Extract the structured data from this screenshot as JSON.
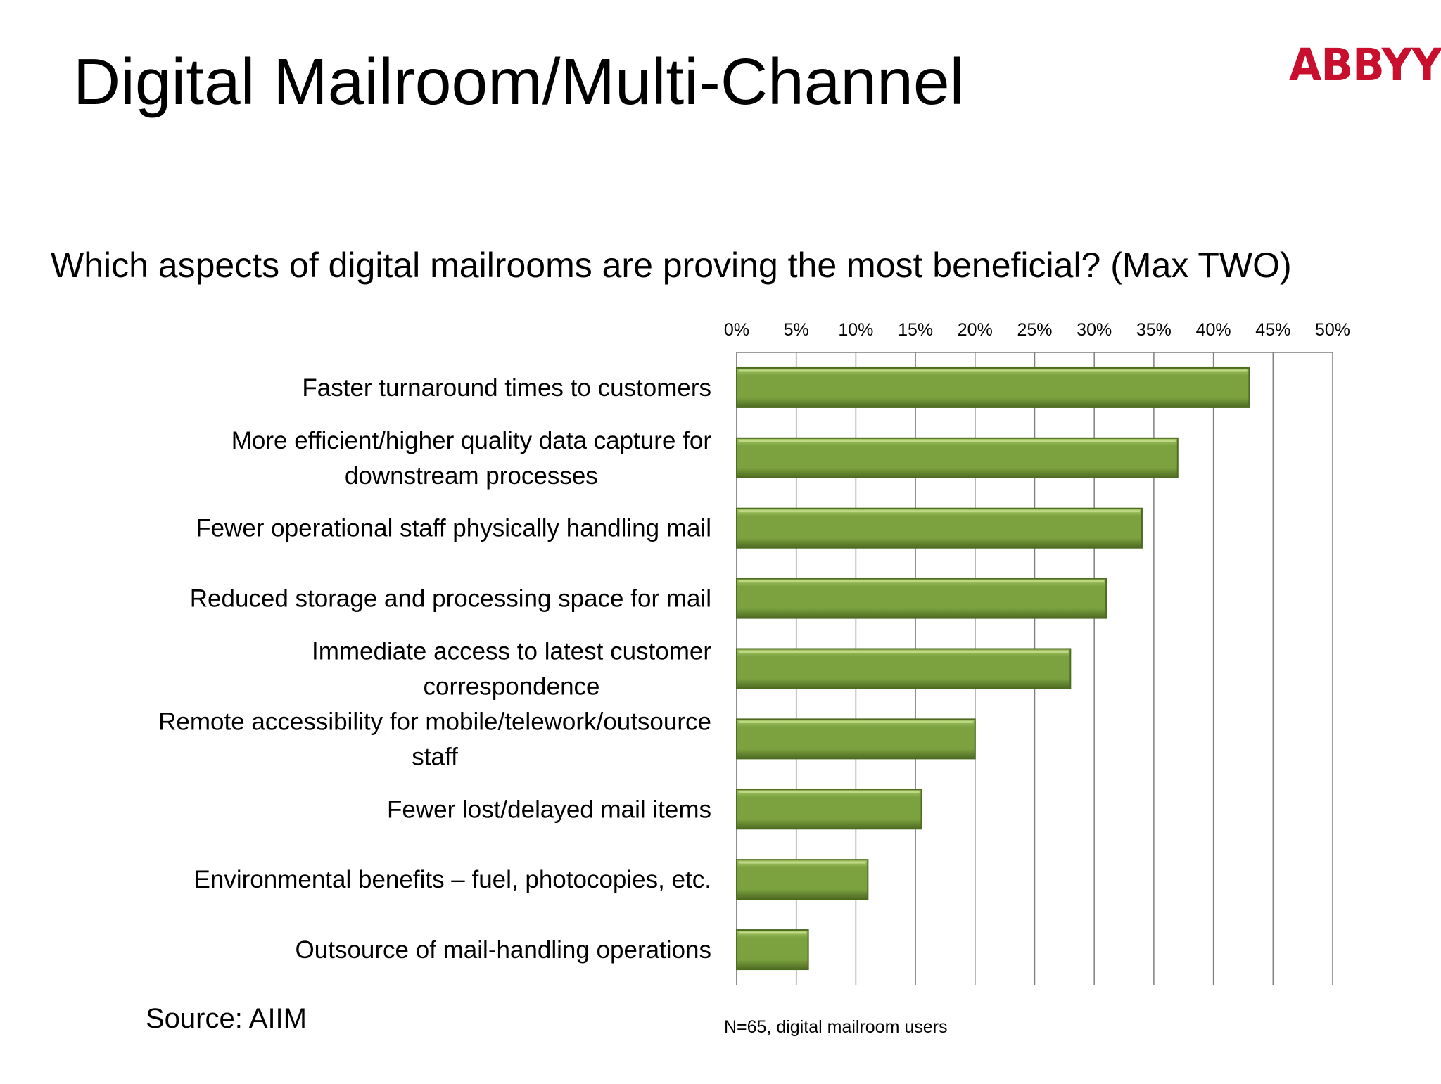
{
  "title": "Digital Mailroom/Multi-Channel",
  "logo_text": "ABBYY",
  "logo_mark": "®",
  "question": "Which aspects of digital mailrooms are proving the most beneficial? (Max TWO)",
  "source": "Source: AIIM",
  "note": "N=65, digital mailroom users",
  "colors": {
    "bar": "#7ba23f",
    "bar_light": "#a9c96a",
    "bar_dark": "#4e6b22",
    "grid": "#7f7f7f",
    "logo": "#c8102e"
  },
  "chart_data": {
    "type": "bar",
    "orientation": "horizontal",
    "categories": [
      [
        "Faster turnaround times to customers"
      ],
      [
        "More efficient/higher quality data capture for",
        "downstream processes"
      ],
      [
        "Fewer operational staff physically handling mail"
      ],
      [
        "Reduced storage and processing space for mail"
      ],
      [
        "Immediate access to latest customer",
        "correspondence"
      ],
      [
        "Remote accessibility for mobile/telework/outsource",
        "staff"
      ],
      [
        "Fewer lost/delayed mail items"
      ],
      [
        "Environmental benefits – fuel, photocopies, etc."
      ],
      [
        "Outsource of mail-handling operations"
      ]
    ],
    "values": [
      43,
      37,
      34,
      31,
      28,
      20,
      15.5,
      11,
      6
    ],
    "xlim": [
      0,
      50
    ],
    "xticks": [
      "0%",
      "5%",
      "10%",
      "15%",
      "20%",
      "25%",
      "30%",
      "35%",
      "40%",
      "45%",
      "50%"
    ],
    "axis_position": "top",
    "grid": true,
    "legend": "none"
  }
}
